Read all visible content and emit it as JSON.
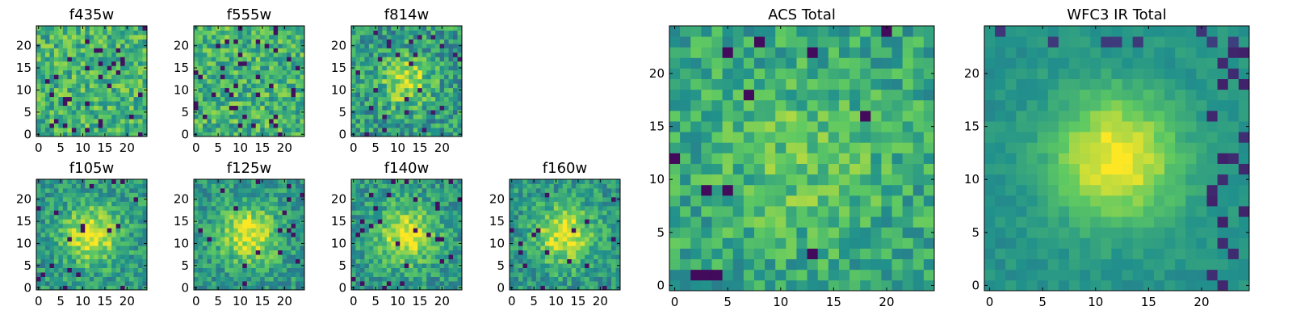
{
  "figure": {
    "description_colormap": "viridis"
  },
  "palette": {
    "c0": "#440154",
    "c1": "#3b528b",
    "c2": "#21918c",
    "c3": "#5ec962",
    "c4": "#fde725"
  },
  "chart_data": [
    {
      "id": "p-f435w",
      "type": "heatmap",
      "title": "f435w",
      "grid": [
        25,
        25
      ],
      "xticks": [
        "0",
        "5",
        "10",
        "15",
        "20"
      ],
      "yticks": [
        "0",
        "5",
        "10",
        "15",
        "20"
      ],
      "xlim": [
        0,
        24
      ],
      "ylim": [
        0,
        24
      ],
      "structure": "noise",
      "seed": 11
    },
    {
      "id": "p-f555w",
      "type": "heatmap",
      "title": "f555w",
      "grid": [
        25,
        25
      ],
      "xticks": [
        "0",
        "5",
        "10",
        "15",
        "20"
      ],
      "yticks": [
        "0",
        "5",
        "10",
        "15",
        "20"
      ],
      "xlim": [
        0,
        24
      ],
      "ylim": [
        0,
        24
      ],
      "structure": "noise",
      "seed": 23
    },
    {
      "id": "p-f814w",
      "type": "heatmap",
      "title": "f814w",
      "grid": [
        25,
        25
      ],
      "xticks": [
        "0",
        "5",
        "10",
        "15",
        "20"
      ],
      "yticks": [
        "0",
        "5",
        "10",
        "15",
        "20"
      ],
      "xlim": [
        0,
        24
      ],
      "ylim": [
        0,
        24
      ],
      "structure": "noise-peak",
      "seed": 37
    },
    {
      "id": "p-f105w",
      "type": "heatmap",
      "title": "f105w",
      "grid": [
        25,
        25
      ],
      "xticks": [
        "0",
        "5",
        "10",
        "15",
        "20"
      ],
      "yticks": [
        "0",
        "5",
        "10",
        "15",
        "20"
      ],
      "xlim": [
        0,
        24
      ],
      "ylim": [
        0,
        24
      ],
      "structure": "blob",
      "seed": 41
    },
    {
      "id": "p-f125w",
      "type": "heatmap",
      "title": "f125w",
      "grid": [
        25,
        25
      ],
      "xticks": [
        "0",
        "5",
        "10",
        "15",
        "20"
      ],
      "yticks": [
        "0",
        "5",
        "10",
        "15",
        "20"
      ],
      "xlim": [
        0,
        24
      ],
      "ylim": [
        0,
        24
      ],
      "structure": "blob",
      "seed": 53
    },
    {
      "id": "p-f140w",
      "type": "heatmap",
      "title": "f140w",
      "grid": [
        25,
        25
      ],
      "xticks": [
        "0",
        "5",
        "10",
        "15",
        "20"
      ],
      "yticks": [
        "0",
        "5",
        "10",
        "15",
        "20"
      ],
      "xlim": [
        0,
        24
      ],
      "ylim": [
        0,
        24
      ],
      "structure": "blob",
      "seed": 67
    },
    {
      "id": "p-f160w",
      "type": "heatmap",
      "title": "f160w",
      "grid": [
        25,
        25
      ],
      "xticks": [
        "0",
        "5",
        "10",
        "15",
        "20"
      ],
      "yticks": [
        "0",
        "5",
        "10",
        "15",
        "20"
      ],
      "xlim": [
        0,
        24
      ],
      "ylim": [
        0,
        24
      ],
      "structure": "blob",
      "seed": 79
    },
    {
      "id": "p-acs",
      "type": "heatmap",
      "title": "ACS Total",
      "grid": [
        25,
        25
      ],
      "xticks": [
        "0",
        "5",
        "10",
        "15",
        "20"
      ],
      "yticks": [
        "0",
        "5",
        "10",
        "15",
        "20"
      ],
      "xlim": [
        0,
        24
      ],
      "ylim": [
        0,
        24
      ],
      "structure": "noise-soft",
      "seed": 97
    },
    {
      "id": "p-wfc3",
      "type": "heatmap",
      "title": "WFC3 IR Total",
      "grid": [
        25,
        25
      ],
      "xticks": [
        "0",
        "5",
        "10",
        "15",
        "20"
      ],
      "yticks": [
        "0",
        "5",
        "10",
        "15",
        "20"
      ],
      "xlim": [
        0,
        24
      ],
      "ylim": [
        0,
        24
      ],
      "structure": "smooth-blob",
      "seed": 101
    }
  ]
}
